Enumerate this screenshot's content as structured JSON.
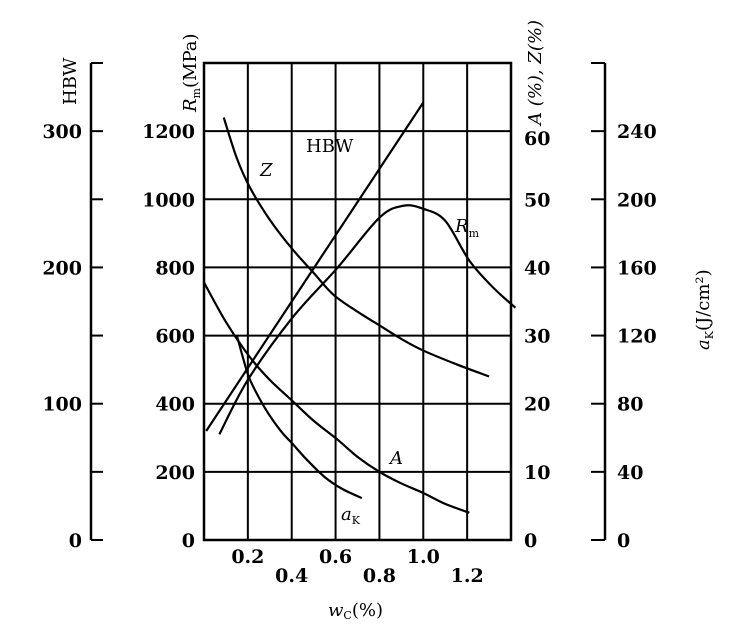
{
  "chart_data": {
    "type": "line",
    "title": "",
    "xlabel": "w_C(%)",
    "xlabel_main": "w",
    "xlabel_sub": "C",
    "xlabel_unit": "(%)",
    "xlim": [
      0,
      1.4
    ],
    "x_ticks_upper": [
      "0.2",
      "0.6",
      "1.0"
    ],
    "x_ticks_upper_values": [
      0.2,
      0.6,
      1.0
    ],
    "x_ticks_lower": [
      "0.4",
      "0.8",
      "1.2"
    ],
    "x_ticks_lower_values": [
      0.4,
      0.8,
      1.2
    ],
    "grid": true,
    "axes": {
      "hbw": {
        "title": "HBW",
        "ylim": [
          0,
          350
        ],
        "ticks": [
          "0",
          "100",
          "200",
          "300"
        ],
        "tick_values": [
          0,
          100,
          200,
          300
        ]
      },
      "rm": {
        "title": "R_m (MPa)",
        "title_main": "R",
        "title_sub": "m",
        "title_unit": "(MPa)",
        "ylim": [
          0,
          1400
        ],
        "ticks": [
          "0",
          "200",
          "400",
          "600",
          "800",
          "1000",
          "1200"
        ],
        "tick_values": [
          0,
          200,
          400,
          600,
          800,
          1000,
          1200
        ]
      },
      "az": {
        "title": "A (%), Z(%)",
        "ylim": [
          0,
          70
        ],
        "ticks": [
          "0",
          "10",
          "20",
          "30",
          "40",
          "50",
          "60"
        ],
        "tick_values": [
          0,
          10,
          20,
          30,
          40,
          50,
          60
        ]
      },
      "ak": {
        "title": "a_K(J/cm²)",
        "title_main": "a",
        "title_sub": "K",
        "title_unit": "(J/cm²)",
        "ylim": [
          0,
          280
        ],
        "ticks": [
          "0",
          "40",
          "80",
          "120",
          "160",
          "200",
          "240"
        ],
        "tick_values": [
          0,
          40,
          80,
          120,
          160,
          200,
          240
        ]
      }
    },
    "series": [
      {
        "name": "HBW",
        "axis": "hbw",
        "label": "HBW",
        "x": [
          0.01,
          1.0
        ],
        "y": [
          80,
          321
        ]
      },
      {
        "name": "Rm",
        "axis": "rm",
        "label": "R",
        "label_sub": "m",
        "x": [
          0.07,
          0.2,
          0.4,
          0.61,
          0.8,
          0.91,
          1.0,
          1.1,
          1.21,
          1.32,
          1.42
        ],
        "y": [
          310,
          470,
          650,
          800,
          946,
          981,
          972,
          937,
          820,
          740,
          682
        ]
      },
      {
        "name": "Z",
        "axis": "az",
        "label": "Z",
        "x": [
          0.09,
          0.15,
          0.21,
          0.3,
          0.4,
          0.5,
          0.59,
          0.7,
          0.8,
          0.9,
          1.0,
          1.15,
          1.3
        ],
        "y": [
          62,
          56,
          51.7,
          47,
          42.8,
          39.2,
          36,
          33.5,
          31.5,
          29.5,
          27.8,
          25.8,
          24
        ]
      },
      {
        "name": "A",
        "axis": "az",
        "label": "A",
        "x": [
          0.0,
          0.1,
          0.21,
          0.3,
          0.4,
          0.5,
          0.61,
          0.7,
          0.8,
          0.9,
          1.0,
          1.1,
          1.21
        ],
        "y": [
          37.8,
          32,
          26.8,
          23.5,
          20.5,
          17.5,
          14.7,
          12.2,
          10,
          8.3,
          6.9,
          5.3,
          4
        ]
      },
      {
        "name": "aK",
        "axis": "ak",
        "label": "a",
        "label_sub": "K",
        "x": [
          0.15,
          0.18,
          0.21,
          0.28,
          0.35,
          0.4,
          0.47,
          0.55,
          0.63,
          0.72
        ],
        "y": [
          120,
          106,
          94,
          77,
          64,
          57,
          47,
          37,
          30,
          24.6
        ]
      }
    ]
  }
}
